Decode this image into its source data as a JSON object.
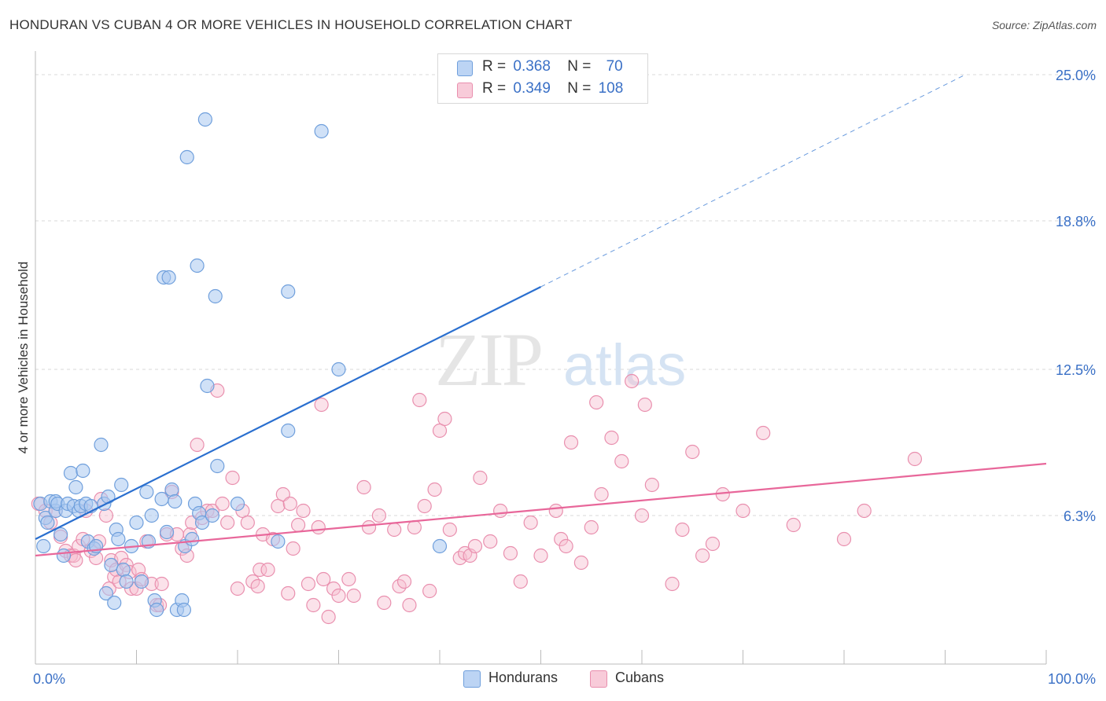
{
  "header": {
    "title": "HONDURAN VS CUBAN 4 OR MORE VEHICLES IN HOUSEHOLD CORRELATION CHART",
    "source": "Source: ZipAtlas.com"
  },
  "watermark": {
    "zip": "ZIP",
    "atlas": "atlas"
  },
  "legend": {
    "hondurans": {
      "r_label": "R =",
      "r_value": "0.368",
      "n_label": "N =",
      "n_value": "70"
    },
    "cubans": {
      "r_label": "R =",
      "r_value": "0.349",
      "n_label": "N =",
      "n_value": "108"
    }
  },
  "colors": {
    "hondurans_fill": "#a9c8f0",
    "hondurans_stroke": "#6f9fdc",
    "hondurans_line": "#2a6fcf",
    "cubans_fill": "#f6bfd0",
    "cubans_stroke": "#e98fae",
    "cubans_line": "#e8679a",
    "axis_label": "#3a70c6",
    "grid": "#d9d9d9"
  },
  "chart_data": {
    "type": "scatter",
    "title": "HONDURAN VS CUBAN 4 OR MORE VEHICLES IN HOUSEHOLD CORRELATION CHART",
    "xlabel": "",
    "ylabel": "4 or more Vehicles in Household",
    "xlim": [
      0,
      100
    ],
    "ylim": [
      0,
      25.5
    ],
    "x_tick_labels": [
      "0.0%",
      "100.0%"
    ],
    "y_ticks": [
      6.3,
      12.5,
      18.8,
      25.0
    ],
    "y_tick_labels": [
      "6.3%",
      "12.5%",
      "18.8%",
      "25.0%"
    ],
    "grid": true,
    "legend_position": "bottom-center",
    "series": [
      {
        "name": "Hondurans",
        "trend": {
          "x0": 0,
          "y0": 5.3,
          "x1": 50,
          "y1": 16.0,
          "dashed_to_x": 92,
          "dashed_to_y": 25.0
        },
        "points": [
          [
            0.5,
            6.8
          ],
          [
            0.8,
            5.0
          ],
          [
            1.0,
            6.2
          ],
          [
            1.2,
            6.0
          ],
          [
            1.5,
            6.9
          ],
          [
            2.0,
            6.5
          ],
          [
            2.0,
            6.9
          ],
          [
            2.2,
            6.8
          ],
          [
            2.5,
            5.5
          ],
          [
            2.8,
            4.6
          ],
          [
            3.0,
            6.5
          ],
          [
            3.2,
            6.8
          ],
          [
            3.5,
            8.1
          ],
          [
            3.8,
            6.7
          ],
          [
            4.0,
            7.5
          ],
          [
            4.3,
            6.5
          ],
          [
            4.5,
            6.7
          ],
          [
            4.7,
            8.2
          ],
          [
            5.0,
            6.8
          ],
          [
            5.2,
            5.2
          ],
          [
            5.5,
            6.7
          ],
          [
            5.8,
            4.9
          ],
          [
            6.0,
            5.0
          ],
          [
            6.5,
            9.3
          ],
          [
            6.8,
            6.8
          ],
          [
            7.0,
            3.0
          ],
          [
            7.2,
            7.1
          ],
          [
            7.5,
            4.2
          ],
          [
            7.8,
            2.6
          ],
          [
            8.0,
            5.7
          ],
          [
            8.2,
            5.3
          ],
          [
            8.5,
            7.6
          ],
          [
            8.7,
            4.0
          ],
          [
            9.0,
            3.5
          ],
          [
            9.5,
            5.0
          ],
          [
            10.0,
            6.0
          ],
          [
            10.5,
            3.5
          ],
          [
            11.0,
            7.3
          ],
          [
            11.2,
            5.2
          ],
          [
            11.5,
            6.3
          ],
          [
            11.8,
            2.7
          ],
          [
            12.0,
            2.3
          ],
          [
            12.5,
            7.0
          ],
          [
            12.7,
            16.4
          ],
          [
            13.0,
            5.6
          ],
          [
            13.2,
            16.4
          ],
          [
            13.5,
            7.4
          ],
          [
            13.8,
            6.9
          ],
          [
            14.0,
            2.3
          ],
          [
            14.5,
            2.7
          ],
          [
            14.7,
            2.3
          ],
          [
            14.8,
            5.0
          ],
          [
            15.0,
            21.5
          ],
          [
            15.5,
            5.3
          ],
          [
            15.8,
            6.8
          ],
          [
            16.0,
            16.9
          ],
          [
            16.2,
            6.4
          ],
          [
            16.5,
            6.0
          ],
          [
            16.8,
            23.1
          ],
          [
            17.0,
            11.8
          ],
          [
            17.5,
            6.3
          ],
          [
            17.8,
            15.6
          ],
          [
            18.0,
            8.4
          ],
          [
            20.0,
            6.8
          ],
          [
            24.0,
            5.2
          ],
          [
            25.0,
            15.8
          ],
          [
            25.0,
            9.9
          ],
          [
            28.3,
            22.6
          ],
          [
            30.0,
            12.5
          ],
          [
            40.0,
            5.0
          ]
        ]
      },
      {
        "name": "Cubans",
        "trend": {
          "x0": 0,
          "y0": 4.6,
          "x1": 100,
          "y1": 8.5
        },
        "points": [
          [
            0.3,
            6.8
          ],
          [
            1.0,
            6.5
          ],
          [
            1.5,
            6.0
          ],
          [
            2.0,
            6.5
          ],
          [
            2.5,
            5.4
          ],
          [
            3.0,
            4.8
          ],
          [
            3.5,
            4.6
          ],
          [
            3.8,
            4.6
          ],
          [
            4.0,
            4.4
          ],
          [
            4.3,
            5.0
          ],
          [
            4.7,
            5.3
          ],
          [
            5.0,
            6.5
          ],
          [
            5.5,
            4.8
          ],
          [
            6.0,
            4.5
          ],
          [
            6.3,
            5.2
          ],
          [
            6.5,
            7.0
          ],
          [
            7.0,
            6.3
          ],
          [
            7.3,
            3.2
          ],
          [
            7.5,
            4.4
          ],
          [
            7.8,
            3.7
          ],
          [
            8.0,
            4.0
          ],
          [
            8.3,
            3.5
          ],
          [
            8.5,
            4.5
          ],
          [
            9.0,
            4.2
          ],
          [
            9.3,
            3.9
          ],
          [
            9.5,
            3.2
          ],
          [
            10.0,
            3.2
          ],
          [
            10.2,
            4.0
          ],
          [
            10.5,
            3.6
          ],
          [
            11.0,
            5.2
          ],
          [
            11.5,
            3.4
          ],
          [
            12.0,
            2.5
          ],
          [
            12.3,
            2.5
          ],
          [
            12.5,
            3.4
          ],
          [
            13.0,
            5.5
          ],
          [
            13.5,
            7.3
          ],
          [
            14.0,
            5.5
          ],
          [
            14.5,
            4.9
          ],
          [
            15.0,
            4.6
          ],
          [
            15.3,
            5.5
          ],
          [
            15.5,
            6.0
          ],
          [
            16.0,
            9.3
          ],
          [
            16.5,
            6.2
          ],
          [
            17.0,
            6.5
          ],
          [
            17.5,
            6.5
          ],
          [
            18.0,
            11.6
          ],
          [
            18.5,
            6.8
          ],
          [
            19.0,
            6.0
          ],
          [
            19.5,
            7.9
          ],
          [
            20.0,
            3.2
          ],
          [
            20.5,
            6.5
          ],
          [
            21.0,
            6.0
          ],
          [
            21.5,
            3.5
          ],
          [
            22.0,
            3.3
          ],
          [
            22.2,
            4.0
          ],
          [
            22.5,
            5.5
          ],
          [
            23.0,
            4.0
          ],
          [
            23.5,
            5.3
          ],
          [
            24.0,
            6.7
          ],
          [
            24.5,
            7.2
          ],
          [
            25.0,
            3.0
          ],
          [
            25.2,
            6.8
          ],
          [
            25.5,
            4.9
          ],
          [
            26.0,
            5.9
          ],
          [
            26.5,
            6.5
          ],
          [
            27.0,
            3.4
          ],
          [
            27.5,
            2.5
          ],
          [
            28.0,
            5.8
          ],
          [
            28.3,
            11.0
          ],
          [
            28.5,
            3.6
          ],
          [
            29.0,
            2.0
          ],
          [
            29.5,
            3.2
          ],
          [
            30.0,
            2.9
          ],
          [
            31.0,
            3.6
          ],
          [
            31.5,
            2.9
          ],
          [
            32.5,
            7.5
          ],
          [
            33.0,
            5.8
          ],
          [
            34.0,
            6.3
          ],
          [
            34.5,
            2.6
          ],
          [
            35.5,
            5.7
          ],
          [
            36.0,
            3.3
          ],
          [
            36.5,
            3.5
          ],
          [
            37.0,
            2.5
          ],
          [
            37.5,
            5.8
          ],
          [
            38.0,
            11.2
          ],
          [
            38.5,
            6.7
          ],
          [
            39.0,
            3.1
          ],
          [
            39.5,
            7.4
          ],
          [
            40.0,
            9.9
          ],
          [
            40.5,
            10.4
          ],
          [
            41.0,
            5.7
          ],
          [
            42.0,
            4.5
          ],
          [
            42.5,
            4.7
          ],
          [
            43.0,
            4.6
          ],
          [
            43.5,
            5.0
          ],
          [
            44.0,
            7.9
          ],
          [
            45.0,
            5.2
          ],
          [
            46.0,
            6.5
          ],
          [
            47.0,
            4.7
          ],
          [
            48.0,
            3.5
          ],
          [
            49.0,
            6.0
          ],
          [
            50.0,
            4.6
          ],
          [
            51.5,
            6.5
          ],
          [
            52.0,
            5.3
          ],
          [
            52.5,
            5.0
          ],
          [
            53.0,
            9.4
          ],
          [
            54.0,
            4.3
          ],
          [
            55.0,
            5.8
          ],
          [
            55.5,
            11.1
          ],
          [
            56.0,
            7.2
          ],
          [
            57.0,
            9.6
          ],
          [
            58.0,
            8.6
          ],
          [
            59.0,
            12.0
          ],
          [
            60.0,
            6.3
          ],
          [
            60.3,
            11.0
          ],
          [
            61.0,
            7.6
          ],
          [
            63.0,
            3.4
          ],
          [
            64.0,
            5.7
          ],
          [
            65.0,
            9.0
          ],
          [
            66.0,
            4.6
          ],
          [
            67.0,
            5.1
          ],
          [
            68.0,
            7.2
          ],
          [
            70.0,
            6.5
          ],
          [
            72.0,
            9.8
          ],
          [
            75.0,
            5.9
          ],
          [
            80.0,
            5.3
          ],
          [
            82.0,
            6.5
          ],
          [
            87.0,
            8.7
          ]
        ]
      }
    ]
  },
  "bottom_legend": {
    "hondurans": "Hondurans",
    "cubans": "Cubans"
  }
}
